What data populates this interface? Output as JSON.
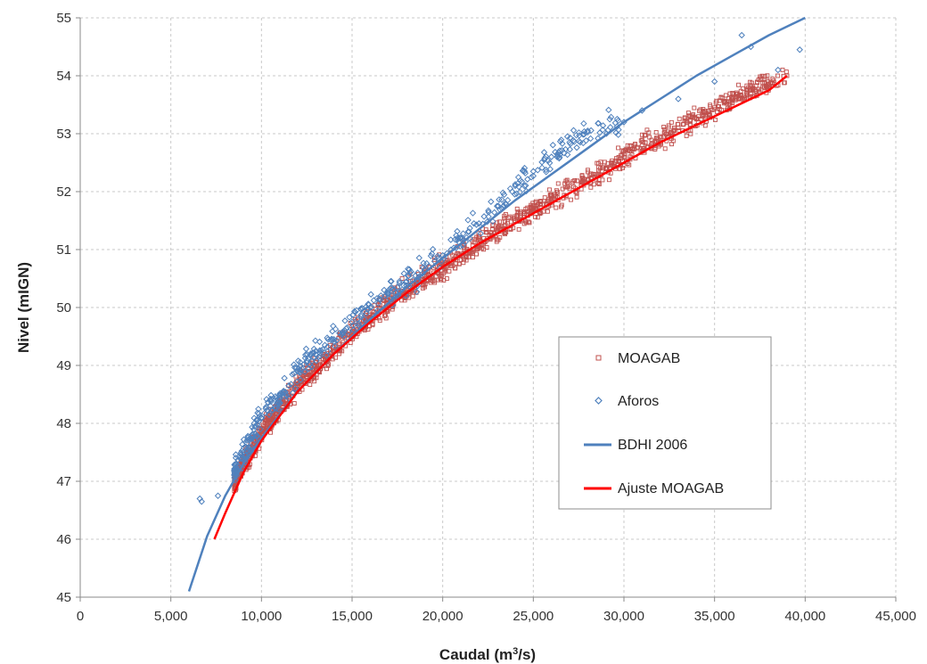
{
  "chart_data": {
    "type": "scatter",
    "title": "",
    "xlabel_main": "Caudal (m",
    "xlabel_sup": "3",
    "xlabel_tail": "/s)",
    "ylabel": "Nivel (mIGN)",
    "xlim": [
      0,
      45000
    ],
    "ylim": [
      45,
      55
    ],
    "xticks": [
      0,
      5000,
      10000,
      15000,
      20000,
      25000,
      30000,
      35000,
      40000,
      45000
    ],
    "xtick_labels": [
      "0",
      "5,000",
      "10,000",
      "15,000",
      "20,000",
      "25,000",
      "30,000",
      "35,000",
      "40,000",
      "45,000"
    ],
    "yticks": [
      45,
      46,
      47,
      48,
      49,
      50,
      51,
      52,
      53,
      54,
      55
    ],
    "ytick_labels": [
      "45",
      "46",
      "47",
      "48",
      "49",
      "50",
      "51",
      "52",
      "53",
      "54",
      "55"
    ],
    "grid": true,
    "legend_position": "center-right",
    "series": [
      {
        "name": "MOAGAB",
        "kind": "scatter",
        "marker": "square-open",
        "color": "#c0504d",
        "x": [
          8500,
          9000,
          9500,
          10000,
          10500,
          11000,
          11500,
          12000,
          12500,
          13000,
          13500,
          14000,
          14500,
          15000,
          15500,
          16000,
          16500,
          17000,
          17500,
          18000,
          18500,
          19000,
          19500,
          20000,
          21000,
          22000,
          23000,
          24000,
          25000,
          26000,
          27000,
          28000,
          29000,
          30000,
          31000,
          32000,
          33000,
          34000,
          35000,
          36000,
          37000,
          38000,
          39000
        ],
        "y": [
          47.0,
          47.3,
          47.55,
          47.85,
          48.05,
          48.25,
          48.45,
          48.65,
          48.8,
          48.95,
          49.1,
          49.25,
          49.4,
          49.55,
          49.7,
          49.8,
          49.95,
          50.05,
          50.2,
          50.3,
          50.4,
          50.5,
          50.6,
          50.7,
          50.9,
          51.1,
          51.3,
          51.5,
          51.7,
          51.85,
          52.05,
          52.2,
          52.4,
          52.6,
          52.8,
          52.95,
          53.1,
          53.25,
          53.45,
          53.6,
          53.75,
          53.85,
          54.0
        ],
        "spread": 0.12
      },
      {
        "name": "Aforos",
        "kind": "scatter",
        "marker": "diamond-open",
        "color": "#4f81bd",
        "x": [
          6700,
          6600,
          7600,
          8500,
          9000,
          9500,
          10000,
          10500,
          11000,
          11500,
          12000,
          12500,
          13000,
          13500,
          14000,
          14500,
          15000,
          15500,
          16000,
          16500,
          17000,
          17500,
          18000,
          18500,
          19000,
          20000,
          21000,
          22000,
          23000,
          24000,
          25000,
          26000,
          27000,
          28000,
          30000,
          31000,
          33000,
          35000,
          36500,
          37000,
          38500,
          39700
        ],
        "y": [
          46.65,
          46.7,
          46.75,
          47.2,
          47.5,
          47.8,
          48.1,
          48.3,
          48.45,
          48.65,
          48.9,
          49.05,
          49.25,
          49.35,
          49.45,
          49.55,
          49.75,
          49.85,
          50.0,
          50.15,
          50.25,
          50.35,
          50.45,
          50.55,
          50.65,
          50.9,
          51.2,
          51.45,
          51.75,
          52.1,
          52.35,
          52.6,
          52.85,
          53.05,
          53.2,
          53.4,
          53.6,
          53.9,
          54.7,
          54.5,
          54.1,
          54.45
        ],
        "spread": 0.14
      },
      {
        "name": "BDHI 2006",
        "kind": "line",
        "color": "#4f81bd",
        "x": [
          6000,
          7000,
          8000,
          9000,
          10000,
          12000,
          14000,
          16000,
          18000,
          20000,
          22000,
          24000,
          26000,
          28000,
          30000,
          32000,
          34000,
          36000,
          38000,
          40000
        ],
        "y": [
          45.1,
          46.05,
          46.75,
          47.3,
          47.75,
          48.55,
          49.2,
          49.8,
          50.35,
          50.85,
          51.35,
          51.85,
          52.3,
          52.75,
          53.2,
          53.6,
          54.0,
          54.35,
          54.7,
          55.0
        ]
      },
      {
        "name": "Ajuste MOAGAB",
        "kind": "line",
        "color": "#ff0000",
        "x": [
          7400,
          8000,
          9000,
          10000,
          12000,
          14000,
          16000,
          18000,
          20000,
          22000,
          24000,
          26000,
          28000,
          30000,
          32000,
          34000,
          36000,
          38000,
          39000
        ],
        "y": [
          46.0,
          46.45,
          47.15,
          47.7,
          48.55,
          49.2,
          49.75,
          50.25,
          50.7,
          51.1,
          51.45,
          51.8,
          52.15,
          52.5,
          52.85,
          53.15,
          53.45,
          53.75,
          54.0
        ]
      }
    ]
  }
}
